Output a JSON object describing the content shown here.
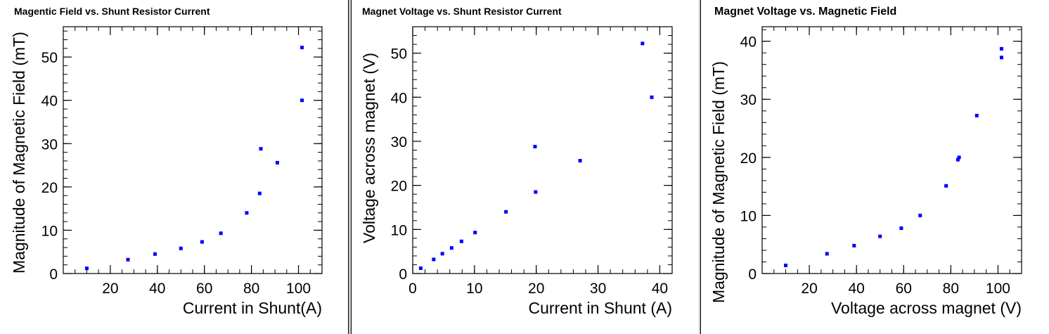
{
  "colors": {
    "marker": "#0000ff",
    "axis": "#000000",
    "background": "#ffffff"
  },
  "chart_data": [
    {
      "type": "scatter",
      "title": "Magentic Field vs. Shunt Resistor Current",
      "xlabel": "Current in Shunt(A)",
      "ylabel": "Magnitude of Magnetic Field (mT)",
      "xlim": [
        0,
        110
      ],
      "ylim": [
        0,
        57
      ],
      "xticks": [
        20,
        40,
        60,
        80,
        100
      ],
      "yticks": [
        0,
        10,
        20,
        30,
        40,
        50
      ],
      "xminor": 5,
      "yminor": 2,
      "grid": false,
      "series": [
        {
          "x": [
            10,
            27.5,
            39,
            50,
            59,
            67,
            78,
            83.5,
            84,
            91,
            101.5,
            101.5
          ],
          "y": [
            1.2,
            3.2,
            4.5,
            5.8,
            7.3,
            9.3,
            14.0,
            18.5,
            28.8,
            25.6,
            40.0,
            52.2
          ]
        }
      ]
    },
    {
      "type": "scatter",
      "title": "Magnet Voltage vs. Shunt Resistor Current",
      "xlabel": "Current in Shunt (A)",
      "ylabel": "Voltage across magnet (V)",
      "xlim": [
        0,
        42
      ],
      "ylim": [
        0,
        56
      ],
      "xticks": [
        0,
        10,
        20,
        30,
        40
      ],
      "yticks": [
        0,
        10,
        20,
        30,
        40,
        50
      ],
      "xminor": 2,
      "yminor": 2,
      "grid": false,
      "series": [
        {
          "x": [
            1.3,
            3.4,
            4.8,
            6.3,
            7.9,
            10.1,
            15.1,
            19.9,
            19.8,
            27.1,
            37.2,
            38.7
          ],
          "y": [
            1.2,
            3.2,
            4.5,
            5.8,
            7.3,
            9.3,
            14.0,
            18.5,
            28.8,
            25.6,
            52.2,
            40.0
          ]
        }
      ]
    },
    {
      "type": "scatter",
      "title": "Magnet Voltage vs. Magnetic Field",
      "xlabel": "Voltage across magnet (V)",
      "ylabel": "Magnitude of Magnetic Field (mT)",
      "xlim": [
        0,
        110
      ],
      "ylim": [
        0,
        42.5
      ],
      "xticks": [
        20,
        40,
        60,
        80,
        100
      ],
      "yticks": [
        0,
        10,
        20,
        30,
        40
      ],
      "xminor": 5,
      "yminor": 2,
      "grid": false,
      "series": [
        {
          "x": [
            10,
            27.5,
            39,
            50,
            59,
            67,
            78,
            83,
            83.5,
            91,
            101.5,
            101.5
          ],
          "y": [
            1.4,
            3.4,
            4.8,
            6.4,
            7.8,
            10.0,
            15.1,
            19.6,
            20.0,
            27.2,
            37.2,
            38.7
          ]
        }
      ]
    }
  ]
}
